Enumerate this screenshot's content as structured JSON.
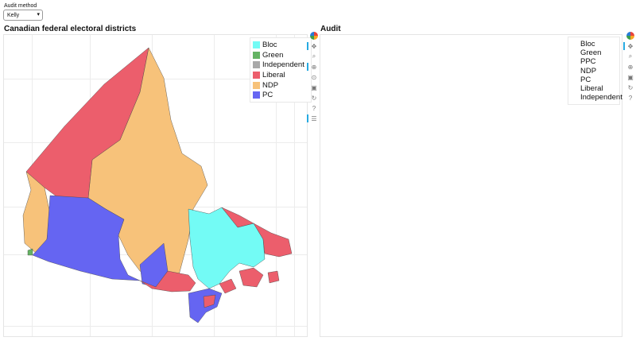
{
  "controls": {
    "audit_method_label": "Audit method",
    "audit_method_value": "Kelly"
  },
  "map_panel": {
    "title": "Canadian federal electoral districts",
    "legend": [
      {
        "label": "Bloc",
        "color": "#73fbf5"
      },
      {
        "label": "Green",
        "color": "#64b363"
      },
      {
        "label": "Independent",
        "color": "#a8a8a8"
      },
      {
        "label": "Liberal",
        "color": "#ec5e6c"
      },
      {
        "label": "NDP",
        "color": "#f7c27a"
      },
      {
        "label": "PC",
        "color": "#6565f2"
      }
    ]
  },
  "audit_panel": {
    "title": "Audit",
    "legend": [
      "Bloc",
      "Green",
      "PPC",
      "NDP",
      "PC",
      "Liberal",
      "Independent"
    ]
  },
  "toolbar_icons": [
    "bokeh-logo-icon",
    "pan-icon",
    "box-zoom-icon",
    "wheel-zoom-icon",
    "zoom-in-icon",
    "save-icon",
    "reset-icon",
    "help-icon",
    "hover-icon"
  ]
}
